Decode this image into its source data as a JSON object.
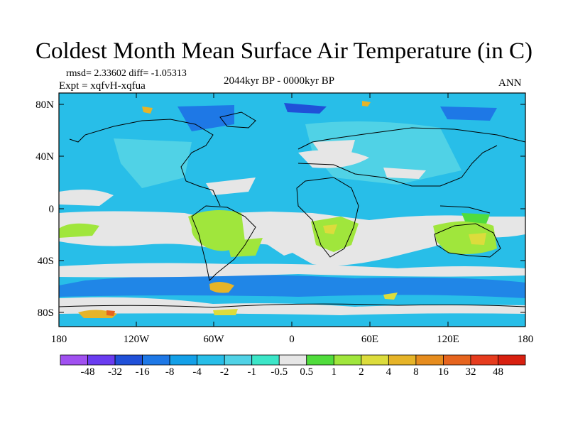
{
  "title": "Coldest Month Mean Surface Air Temperature (in C)",
  "stats": "rmsd= 2.33602  diff= -1.05313",
  "experiment": "Expt = xqfvH-xqfua",
  "period": "2044kyr BP - 0000kyr BP",
  "season": "ANN",
  "lat_labels": [
    "80N",
    "40N",
    "0",
    "40S",
    "80S"
  ],
  "lon_labels": [
    "180",
    "120W",
    "60W",
    "0",
    "60E",
    "120E",
    "180"
  ],
  "colorbar": {
    "labels": [
      "-48",
      "-32",
      "-16",
      "-8",
      "-4",
      "-2",
      "-1",
      "-0.5",
      "0.5",
      "1",
      "2",
      "4",
      "8",
      "16",
      "32",
      "48"
    ],
    "colors": [
      "#a050f0",
      "#6a3cf0",
      "#2050d8",
      "#1e78e6",
      "#14a0e8",
      "#28bee8",
      "#50d2e6",
      "#3ce6c8",
      "#e6e6e6",
      "#50dc3c",
      "#a0e63c",
      "#dcdc3c",
      "#e6b428",
      "#e68c1e",
      "#e6641e",
      "#e63c1e",
      "#d82010"
    ]
  },
  "field_colors": {
    "ocean_cool": "#28bee8",
    "land_cool": "#50d2e6",
    "deep_cool": "#1e78e6",
    "neutral": "#e6e6e6",
    "mint": "#3ce6c8",
    "warm_green": "#a0e63c",
    "yellow": "#dcdc3c",
    "orange": "#e6b428",
    "red": "#e6641e"
  }
}
